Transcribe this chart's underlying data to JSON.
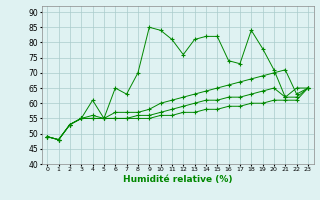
{
  "x": [
    0,
    1,
    2,
    3,
    4,
    5,
    6,
    7,
    8,
    9,
    10,
    11,
    12,
    13,
    14,
    15,
    16,
    17,
    18,
    19,
    20,
    21,
    22,
    23
  ],
  "line1": [
    49,
    48,
    53,
    55,
    61,
    55,
    65,
    63,
    70,
    85,
    84,
    81,
    76,
    81,
    82,
    82,
    74,
    73,
    84,
    78,
    71,
    62,
    65,
    65
  ],
  "line2": [
    49,
    48,
    53,
    55,
    56,
    55,
    57,
    57,
    57,
    58,
    60,
    61,
    62,
    63,
    64,
    65,
    66,
    67,
    68,
    69,
    70,
    71,
    63,
    65
  ],
  "line3": [
    49,
    48,
    53,
    55,
    55,
    55,
    55,
    55,
    56,
    56,
    57,
    58,
    59,
    60,
    61,
    61,
    62,
    62,
    63,
    64,
    65,
    62,
    62,
    65
  ],
  "line4": [
    49,
    48,
    53,
    55,
    55,
    55,
    55,
    55,
    55,
    55,
    56,
    56,
    57,
    57,
    58,
    58,
    59,
    59,
    60,
    60,
    61,
    61,
    61,
    65
  ],
  "bg_color": "#dff2f2",
  "grid_color": "#aacccc",
  "line_color": "#008800",
  "xlabel": "Humidité relative (%)",
  "ylabel_ticks": [
    40,
    45,
    50,
    55,
    60,
    65,
    70,
    75,
    80,
    85,
    90
  ],
  "ylim": [
    40,
    92
  ],
  "xlim": [
    -0.5,
    23.5
  ]
}
